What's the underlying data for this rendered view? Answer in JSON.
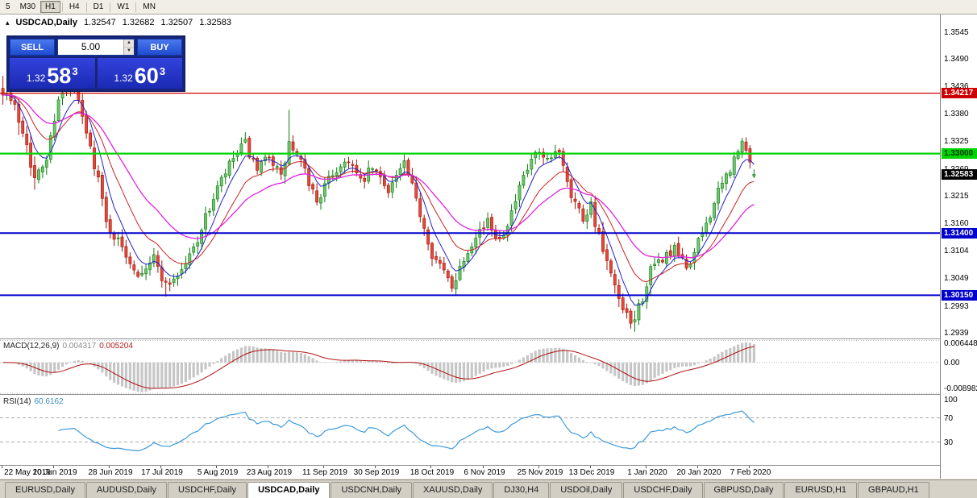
{
  "icons": {
    "chart_arrow": "▴",
    "spin_up": "▲",
    "spin_down": "▼"
  },
  "toolbar": {
    "timeframes": [
      {
        "label": "5",
        "active": false
      },
      {
        "label": "M30",
        "active": false
      },
      {
        "label": "H1",
        "active": true
      },
      {
        "label": "H4",
        "active": false
      },
      {
        "label": "D1",
        "active": false
      },
      {
        "label": "W1",
        "active": false
      },
      {
        "label": "MN",
        "active": false
      }
    ]
  },
  "header": {
    "symbol": "USDCAD,Daily",
    "open": "1.32547",
    "high": "1.32682",
    "low": "1.32507",
    "close": "1.32583"
  },
  "trade_panel": {
    "sell_label": "SELL",
    "buy_label": "BUY",
    "volume": "5.00",
    "sell_price": {
      "stem": "1.32",
      "pips": "58",
      "point": "3"
    },
    "buy_price": {
      "stem": "1.32",
      "pips": "60",
      "point": "3"
    }
  },
  "price_axis": {
    "ticks": [
      "1.3545",
      "1.3490",
      "1.3436",
      "1.3380",
      "1.3325",
      "1.3269",
      "1.3215",
      "1.3160",
      "1.3104",
      "1.3049",
      "1.2993",
      "1.2939"
    ]
  },
  "levels": [
    {
      "label": "1.34217",
      "value": 1.34217,
      "color": "#CC0000",
      "text": "#FFFFFF",
      "width": 1.2
    },
    {
      "label": "1.33000",
      "value": 1.33,
      "color": "#00D400",
      "text": "#003300",
      "width": 2.2
    },
    {
      "label": "1.31400",
      "value": 1.314,
      "color": "#0000CC",
      "text": "#FFFFFF",
      "width": 2
    },
    {
      "label": "1.30150",
      "value": 1.3015,
      "color": "#0000CC",
      "text": "#FFFFFF",
      "width": 2
    }
  ],
  "current_price": {
    "label": "1.32583",
    "value": 1.32583,
    "bg": "#000000",
    "text": "#FFFFFF"
  },
  "macd": {
    "title": "MACD(12,26,9)",
    "value1": "0.004317",
    "value2": "0.005204",
    "axis": [
      {
        "label": "0.006448",
        "value": 0.006448
      },
      {
        "label": "0.00",
        "value": 0
      },
      {
        "label": "-0.008982",
        "value": -0.008982
      }
    ],
    "hist_color": "#C6C6C6",
    "signal_color": "#B01010"
  },
  "rsi": {
    "title": "RSI(14)",
    "value": "60.6162",
    "axis": [
      {
        "label": "100",
        "value": 100
      },
      {
        "label": "70",
        "value": 70
      },
      {
        "label": "30",
        "value": 30
      }
    ],
    "line_color": "#3E9ADB",
    "levels": [
      70,
      30
    ]
  },
  "date_axis": [
    {
      "label": "22 May 2019",
      "i": 0
    },
    {
      "label": "10 Jun 2019",
      "i": 13
    },
    {
      "label": "28 Jun 2019",
      "i": 27
    },
    {
      "label": "17 Jul 2019",
      "i": 40
    },
    {
      "label": "5 Aug 2019",
      "i": 54
    },
    {
      "label": "23 Aug 2019",
      "i": 67
    },
    {
      "label": "11 Sep 2019",
      "i": 81
    },
    {
      "label": "30 Sep 2019",
      "i": 94
    },
    {
      "label": "18 Oct 2019",
      "i": 108
    },
    {
      "label": "6 Nov 2019",
      "i": 121
    },
    {
      "label": "25 Nov 2019",
      "i": 135
    },
    {
      "label": "13 Dec 2019",
      "i": 148
    },
    {
      "label": "1 Jan 2020",
      "i": 162
    },
    {
      "label": "20 Jan 2020",
      "i": 175
    },
    {
      "label": "7 Feb 2020",
      "i": 188
    }
  ],
  "tabs": [
    {
      "label": "EURUSD,Daily",
      "active": false
    },
    {
      "label": "AUDUSD,Daily",
      "active": false
    },
    {
      "label": "USDCHF,Daily",
      "active": false
    },
    {
      "label": "USDCAD,Daily",
      "active": true
    },
    {
      "label": "USDCNH,Daily",
      "active": false
    },
    {
      "label": "XAUUSD,Daily",
      "active": false
    },
    {
      "label": "DJ30,H4",
      "active": false
    },
    {
      "label": "USDOil,Daily",
      "active": false
    },
    {
      "label": "USDCHF,Daily",
      "active": false
    },
    {
      "label": "GBPUSD,Daily",
      "active": false
    },
    {
      "label": "EURUSD,H1",
      "active": false
    },
    {
      "label": "GBPAUD,H1",
      "active": false
    }
  ],
  "chart_data": {
    "type": "candlestick",
    "symbol": "USDCAD",
    "timeframe": "Daily",
    "n_candles": 190,
    "seed": 7,
    "y_range": [
      1.2928,
      1.358
    ],
    "last": {
      "open": 1.32547,
      "high": 1.32682,
      "low": 1.32507,
      "close": 1.32583
    },
    "anchors": [
      [
        0,
        1.3435
      ],
      [
        3,
        1.339
      ],
      [
        6,
        1.333
      ],
      [
        8,
        1.3245
      ],
      [
        11,
        1.329
      ],
      [
        14,
        1.3415
      ],
      [
        18,
        1.343
      ],
      [
        21,
        1.334
      ],
      [
        24,
        1.325
      ],
      [
        26,
        1.316
      ],
      [
        30,
        1.311
      ],
      [
        34,
        1.306
      ],
      [
        38,
        1.309
      ],
      [
        41,
        1.3035
      ],
      [
        45,
        1.3065
      ],
      [
        48,
        1.311
      ],
      [
        51,
        1.317
      ],
      [
        54,
        1.323
      ],
      [
        58,
        1.329
      ],
      [
        61,
        1.332
      ],
      [
        64,
        1.326
      ],
      [
        67,
        1.33
      ],
      [
        70,
        1.325
      ],
      [
        72,
        1.332
      ],
      [
        75,
        1.328
      ],
      [
        79,
        1.3205
      ],
      [
        83,
        1.326
      ],
      [
        87,
        1.329
      ],
      [
        90,
        1.324
      ],
      [
        93,
        1.327
      ],
      [
        97,
        1.323
      ],
      [
        101,
        1.328
      ],
      [
        105,
        1.318
      ],
      [
        108,
        1.31
      ],
      [
        111,
        1.306
      ],
      [
        113,
        1.3035
      ],
      [
        116,
        1.309
      ],
      [
        119,
        1.314
      ],
      [
        122,
        1.316
      ],
      [
        125,
        1.313
      ],
      [
        128,
        1.318
      ],
      [
        131,
        1.325
      ],
      [
        134,
        1.33
      ],
      [
        137,
        1.328
      ],
      [
        140,
        1.331
      ],
      [
        143,
        1.322
      ],
      [
        146,
        1.317
      ],
      [
        148,
        1.32
      ],
      [
        150,
        1.313
      ],
      [
        153,
        1.305
      ],
      [
        156,
        1.298
      ],
      [
        158,
        1.2955
      ],
      [
        160,
        1.299
      ],
      [
        163,
        1.306
      ],
      [
        166,
        1.309
      ],
      [
        169,
        1.3105
      ],
      [
        172,
        1.307
      ],
      [
        174,
        1.31
      ],
      [
        177,
        1.316
      ],
      [
        180,
        1.322
      ],
      [
        183,
        1.327
      ],
      [
        186,
        1.332
      ],
      [
        188,
        1.329
      ],
      [
        189,
        1.32583
      ]
    ],
    "spikes": [
      {
        "i": 0,
        "high": 1.3455
      },
      {
        "i": 17,
        "high": 1.3462
      },
      {
        "i": 72,
        "high": 1.3388
      },
      {
        "i": 41,
        "low": 1.3012
      },
      {
        "i": 113,
        "low": 1.3028
      },
      {
        "i": 158,
        "low": 1.2948
      }
    ],
    "colors": {
      "up_fill": "#6FC66F",
      "up_stroke": "#0E7A0E",
      "down_fill": "#E2493C",
      "down_stroke": "#A31207"
    },
    "moving_averages": [
      {
        "color": "#2222CC",
        "smoothing": 6,
        "width": 1
      },
      {
        "color": "#CC2222",
        "smoothing": 14,
        "width": 1
      },
      {
        "color": "#E022E0",
        "smoothing": 28,
        "width": 1.3
      }
    ]
  }
}
